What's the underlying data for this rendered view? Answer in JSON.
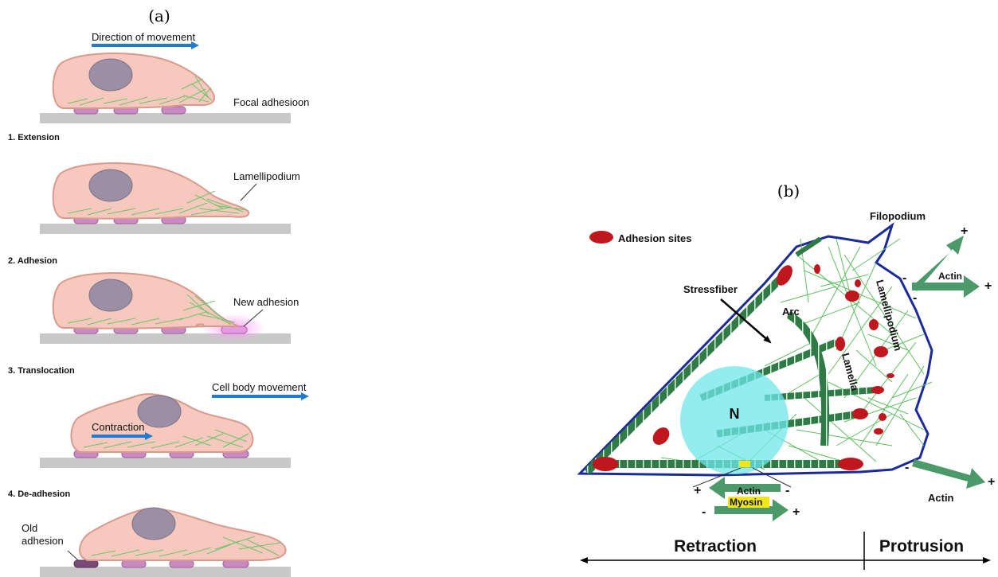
{
  "panel_a": {
    "label": "(a)",
    "direction_label": "Direction of movement",
    "focal_adhesion_label": "Focal adhesioon",
    "steps": [
      {
        "title": "1. Extension",
        "annotation": "Lamellipodium"
      },
      {
        "title": "2. Adhesion",
        "annotation": "New adhesion"
      },
      {
        "title": "3. Translocation",
        "annotation": "Cell body movement",
        "annotation2": "Contraction"
      },
      {
        "title": "4. De-adhesion",
        "annotation": "Old adhesion"
      }
    ]
  },
  "panel_b": {
    "label": "(b)",
    "legend_label": "Adhesion sites",
    "filopodium": "Filopodium",
    "stressfiber": "Stressfiber",
    "arc": "Arc",
    "lamella": "Lamella",
    "lamellipodium": "Lamellipodium",
    "nucleus": "N",
    "actin": "Actin",
    "myosin": "Myosin",
    "plus": "+",
    "minus": "-",
    "retraction": "Retraction",
    "protrusion": "Protrusion"
  },
  "colors": {
    "cell_fill": "#f7c9be",
    "cell_stroke": "#d99a8e",
    "nucleus_fill": "#9c8fa5",
    "adhesion_fill": "#c98ac4",
    "old_adhesion_fill": "#7a4a78",
    "substrate": "#c8c8c8",
    "blue_arrow": "#1f7ad1",
    "actin_green": "#5fbf5f",
    "fiber_green": "#2f7a46",
    "membrane_blue": "#1a2a9c",
    "adhesion_red": "#c0161e",
    "nucleus_cyan": "#6fe7ea",
    "arrow_green": "#4c9a6a",
    "myosin_yellow": "#f2e616"
  }
}
